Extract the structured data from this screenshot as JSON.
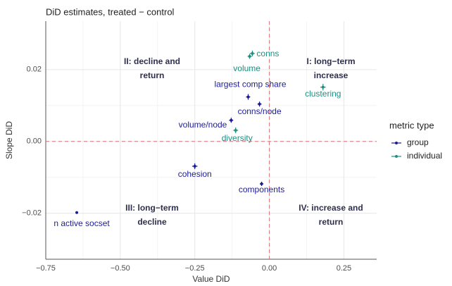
{
  "chart_data": {
    "type": "scatter",
    "title": "DiD estimates, treated − control",
    "x_label": "Value DiD",
    "y_label": "Slope DiD",
    "legend_title": "metric type",
    "xlim": [
      -0.75,
      0.36
    ],
    "ylim": [
      -0.0328,
      0.0335
    ],
    "xticks": [
      {
        "value": -0.75,
        "label": "−0.75"
      },
      {
        "value": -0.5,
        "label": "−0.50"
      },
      {
        "value": -0.25,
        "label": "−0.25"
      },
      {
        "value": 0,
        "label": "0.00"
      },
      0.25
    ],
    "yticks": [
      {
        "value": -0.02,
        "label": "−0.02"
      },
      {
        "value": 0,
        "label": "0.00"
      },
      0.02
    ],
    "grid": true,
    "series": [
      {
        "name": "group",
        "color": "#1c1c96",
        "labels": [
          "n active socset",
          "cohesion",
          "components",
          "volume/node",
          "conns/node",
          "largest comp share"
        ],
        "x": [
          -0.646,
          -0.25,
          -0.026,
          -0.128,
          -0.033,
          -0.071
        ],
        "values": [
          -0.0198,
          -0.0069,
          -0.0118,
          0.0059,
          0.0104,
          0.0124
        ],
        "xerr": [
          0.003,
          0.009,
          0.006,
          0.007,
          0.007,
          0.007
        ],
        "yerr": [
          0.0003,
          0.0008,
          0.0006,
          0.0007,
          0.0007,
          0.0008
        ]
      },
      {
        "name": "individual",
        "color": "#1f8f80",
        "labels": [
          "conns",
          "volume",
          "clustering",
          "diversity"
        ],
        "x": [
          -0.057,
          -0.066,
          0.18,
          -0.113
        ],
        "values": [
          0.0245,
          0.0237,
          0.0151,
          0.0031
        ],
        "xerr": [
          0.008,
          0.007,
          0.009,
          0.008
        ],
        "yerr": [
          0.0008,
          0.0007,
          0.0009,
          0.0008
        ]
      }
    ],
    "annotations": [
      [
        "II: decline and",
        "return"
      ],
      [
        "I: long−term",
        "increase"
      ],
      [
        "III: long−term",
        "decline"
      ],
      [
        "IV: increase and",
        "return"
      ]
    ]
  }
}
